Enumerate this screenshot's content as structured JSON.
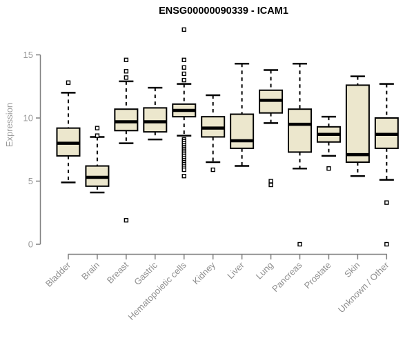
{
  "colors": {
    "box_fill": "#ece7cd",
    "box_stroke": "#000000",
    "median": "#000000",
    "whisker": "#000000",
    "axis": "#7f7f7f",
    "tick_label": "#999999",
    "category_label": "#8f8f8f",
    "title": "#000000",
    "background": "#ffffff"
  },
  "chart_data": {
    "type": "boxplot",
    "title": "ENSG00000090339 - ICAM1",
    "xlabel": "",
    "ylabel": "Expression",
    "yticks": [
      0,
      5,
      10,
      15
    ],
    "ylim": [
      0,
      15
    ],
    "grid": false,
    "legend": null,
    "categories": [
      {
        "label": "Bladder",
        "whisker_low": 4.9,
        "q1": 7.0,
        "median": 8.0,
        "q3": 9.2,
        "whisker_high": 12.0,
        "outliers": [
          12.8
        ]
      },
      {
        "label": "Brain",
        "whisker_low": 4.1,
        "q1": 4.6,
        "median": 5.3,
        "q3": 6.2,
        "whisker_high": 8.5,
        "outliers": [
          8.6,
          9.2
        ]
      },
      {
        "label": "Breast",
        "whisker_low": 8.0,
        "q1": 9.0,
        "median": 9.7,
        "q3": 10.7,
        "whisker_high": 12.9,
        "outliers": [
          14.6,
          13.7,
          13.2,
          1.9
        ]
      },
      {
        "label": "Gastric",
        "whisker_low": 8.3,
        "q1": 8.9,
        "median": 9.7,
        "q3": 10.8,
        "whisker_high": 12.4,
        "outliers": []
      },
      {
        "label": "Hematopoietic cells",
        "whisker_low": 8.6,
        "q1": 10.1,
        "median": 10.6,
        "q3": 11.1,
        "whisker_high": 12.7,
        "outliers": [
          17.0,
          14.6,
          14.0,
          13.5,
          13.0,
          8.3,
          8.15,
          8.0,
          7.85,
          7.7,
          7.55,
          7.4,
          7.25,
          7.1,
          6.95,
          6.8,
          6.65,
          6.5,
          6.35,
          6.2,
          6.05,
          5.9,
          5.4
        ]
      },
      {
        "label": "Kidney",
        "whisker_low": 6.5,
        "q1": 8.5,
        "median": 9.2,
        "q3": 10.1,
        "whisker_high": 11.8,
        "outliers": [
          5.9
        ]
      },
      {
        "label": "Liver",
        "whisker_low": 6.2,
        "q1": 7.6,
        "median": 8.2,
        "q3": 10.3,
        "whisker_high": 14.3,
        "outliers": []
      },
      {
        "label": "Lung",
        "whisker_low": 9.6,
        "q1": 10.4,
        "median": 11.4,
        "q3": 12.2,
        "whisker_high": 13.8,
        "outliers": [
          5.0,
          4.7
        ]
      },
      {
        "label": "Pancreas",
        "whisker_low": 6.0,
        "q1": 7.3,
        "median": 9.5,
        "q3": 10.7,
        "whisker_high": 14.3,
        "outliers": [
          0.0
        ]
      },
      {
        "label": "Prostate",
        "whisker_low": 7.0,
        "q1": 8.1,
        "median": 8.7,
        "q3": 9.3,
        "whisker_high": 10.1,
        "outliers": [
          6.0
        ]
      },
      {
        "label": "Skin",
        "whisker_low": 5.4,
        "q1": 6.5,
        "median": 7.1,
        "q3": 12.6,
        "whisker_high": 13.3,
        "outliers": []
      },
      {
        "label": "Unknown / Other",
        "whisker_low": 5.1,
        "q1": 7.6,
        "median": 8.7,
        "q3": 10.0,
        "whisker_high": 12.7,
        "outliers": [
          3.3,
          0.0
        ]
      }
    ]
  }
}
